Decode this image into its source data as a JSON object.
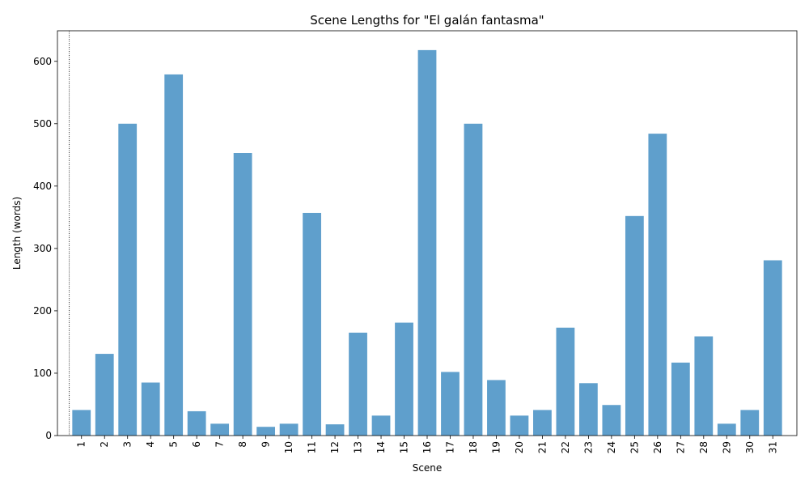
{
  "chart_data": {
    "type": "bar",
    "title": "Scene Lengths for \"El galán fantasma\"",
    "xlabel": "Scene",
    "ylabel": "Length (words)",
    "categories": [
      "1",
      "2",
      "3",
      "4",
      "5",
      "6",
      "7",
      "8",
      "9",
      "10",
      "11",
      "12",
      "13",
      "14",
      "15",
      "16",
      "17",
      "18",
      "19",
      "20",
      "21",
      "22",
      "23",
      "24",
      "25",
      "26",
      "27",
      "28",
      "29",
      "30",
      "31"
    ],
    "values": [
      41,
      131,
      500,
      85,
      579,
      39,
      19,
      453,
      14,
      19,
      357,
      18,
      165,
      32,
      181,
      618,
      102,
      500,
      89,
      32,
      41,
      173,
      84,
      49,
      352,
      484,
      117,
      159,
      19,
      41,
      281
    ],
    "ylim": [
      0,
      649
    ],
    "yticks": [
      0,
      100,
      200,
      300,
      400,
      500,
      600
    ],
    "bar_color": "#5f9fcc",
    "marker_line": {
      "x_category": "1",
      "style": "dotted",
      "color": "#000000"
    },
    "grid": false,
    "legend": "none"
  }
}
